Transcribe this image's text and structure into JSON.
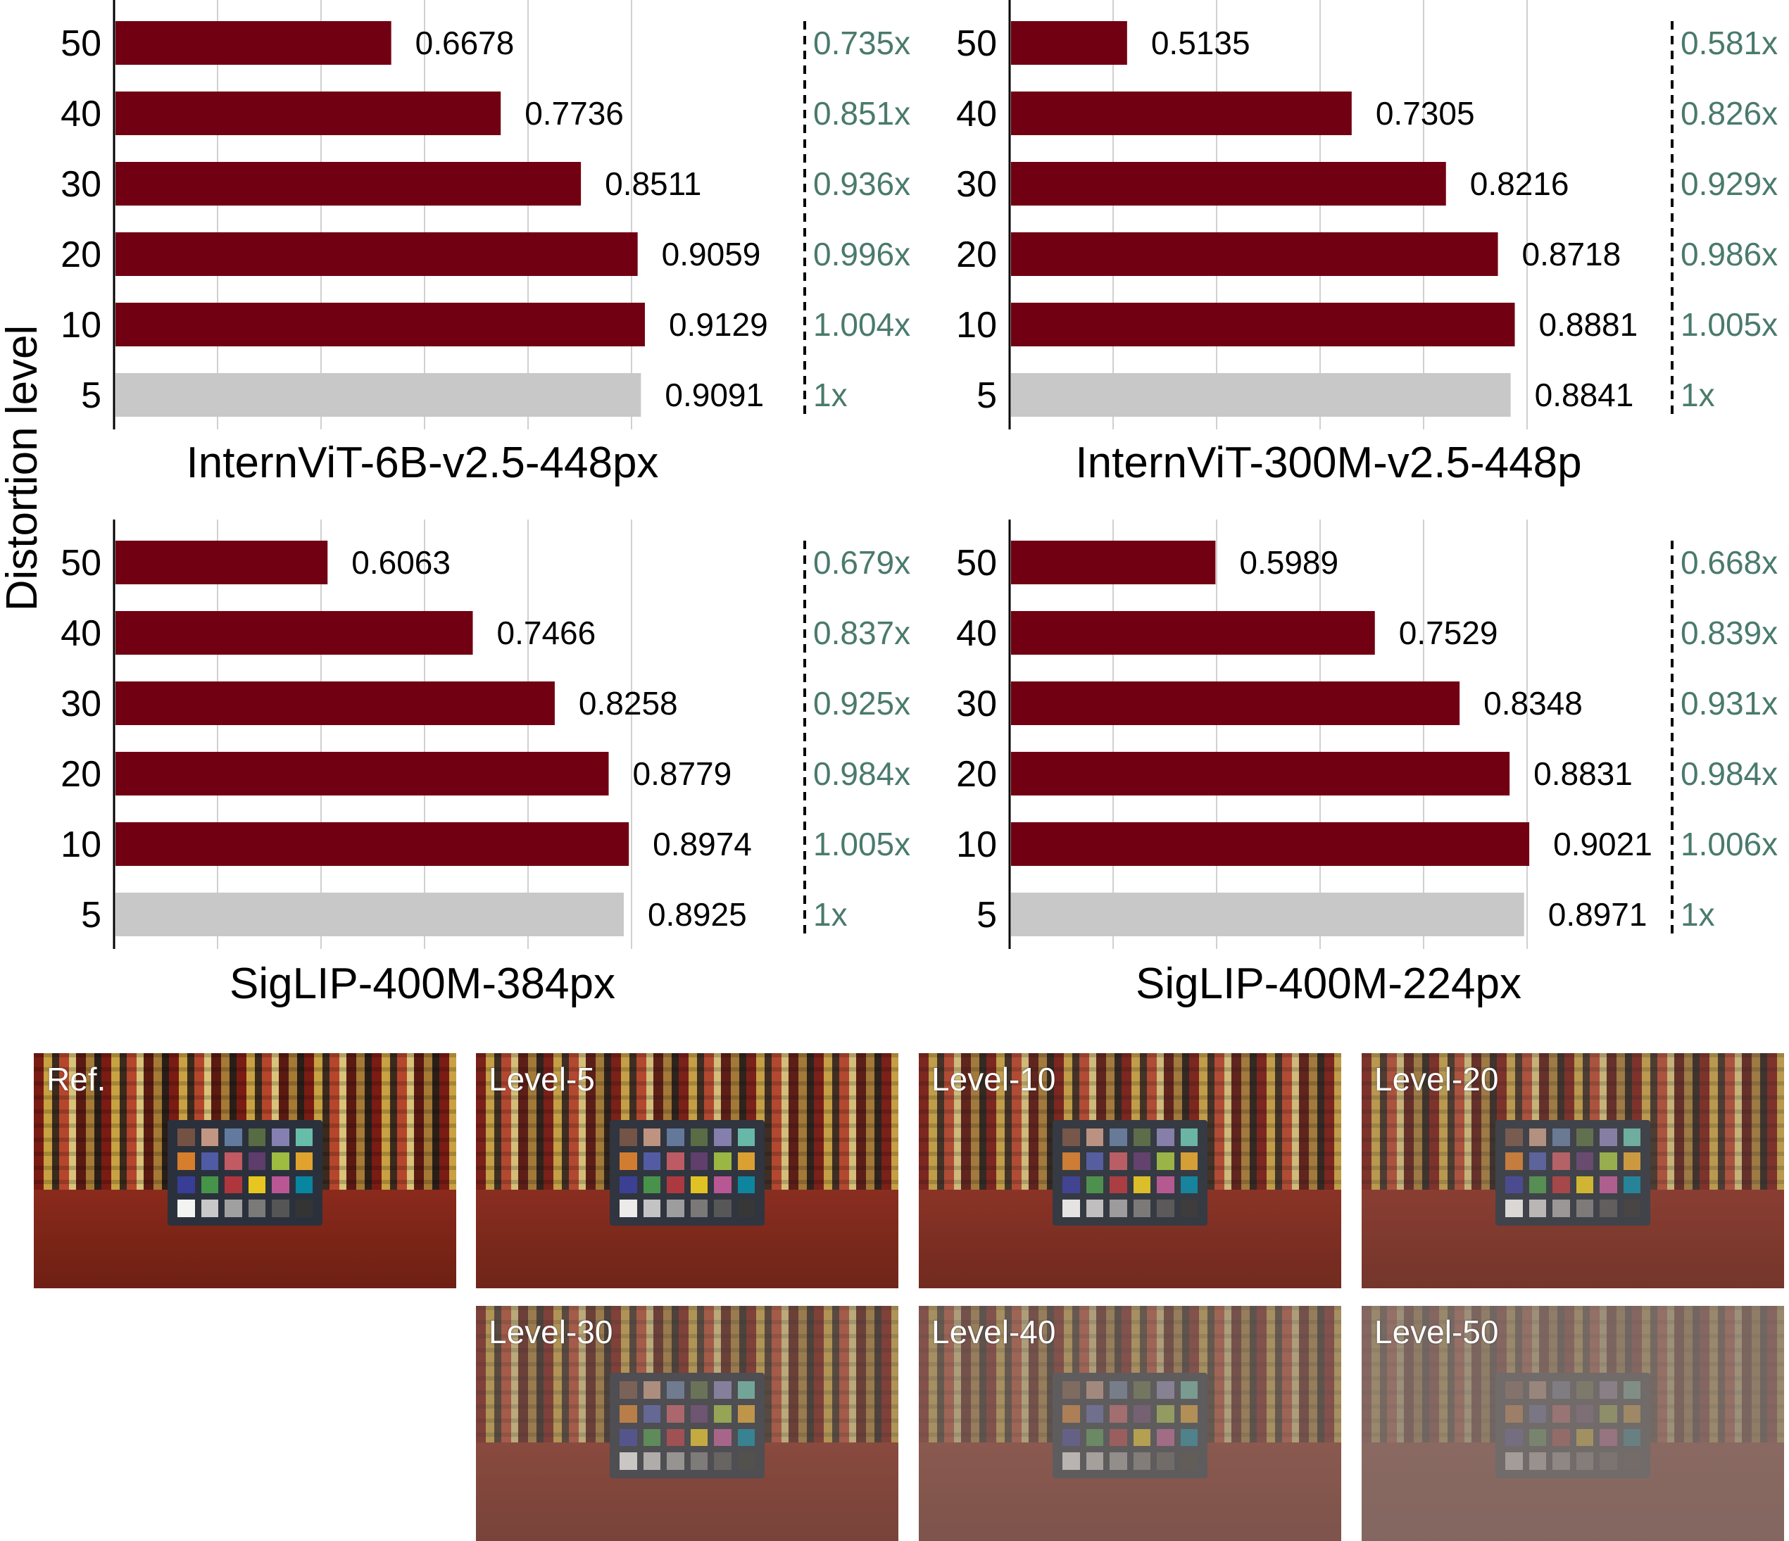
{
  "y_axis_label": "Distortion level",
  "chart_data": [
    {
      "type": "bar",
      "title": "InternViT-6B-v2.5-448px",
      "categories": [
        "50",
        "40",
        "30",
        "20",
        "10",
        "5"
      ],
      "values": [
        0.6678,
        0.7736,
        0.8511,
        0.9059,
        0.9129,
        0.9091
      ],
      "value_labels": [
        "0.6678",
        "0.7736",
        "0.8511",
        "0.9059",
        "0.9129",
        "0.9091"
      ],
      "ratios": [
        "0.735x",
        "0.851x",
        "0.936x",
        "0.996x",
        "1.004x",
        "1x"
      ],
      "bar_colors": [
        "#710012",
        "#710012",
        "#710012",
        "#710012",
        "#710012",
        "#c8c8c8"
      ],
      "xlim": [
        0.4,
        1.0
      ],
      "grid": true
    },
    {
      "type": "bar",
      "title": "InternViT-300M-v2.5-448p",
      "categories": [
        "50",
        "40",
        "30",
        "20",
        "10",
        "5"
      ],
      "values": [
        0.5135,
        0.7305,
        0.8216,
        0.8718,
        0.8881,
        0.8841
      ],
      "value_labels": [
        "0.5135",
        "0.7305",
        "0.8216",
        "0.8718",
        "0.8881",
        "0.8841"
      ],
      "ratios": [
        "0.581x",
        "0.826x",
        "0.929x",
        "0.986x",
        "1.005x",
        "1x"
      ],
      "bar_colors": [
        "#710012",
        "#710012",
        "#710012",
        "#710012",
        "#710012",
        "#c8c8c8"
      ],
      "xlim": [
        0.4,
        1.0
      ],
      "grid": true
    },
    {
      "type": "bar",
      "title": "SigLIP-400M-384px",
      "categories": [
        "50",
        "40",
        "30",
        "20",
        "10",
        "5"
      ],
      "values": [
        0.6063,
        0.7466,
        0.8258,
        0.8779,
        0.8974,
        0.8925
      ],
      "value_labels": [
        "0.6063",
        "0.7466",
        "0.8258",
        "0.8779",
        "0.8974",
        "0.8925"
      ],
      "ratios": [
        "0.679x",
        "0.837x",
        "0.925x",
        "0.984x",
        "1.005x",
        "1x"
      ],
      "bar_colors": [
        "#710012",
        "#710012",
        "#710012",
        "#710012",
        "#710012",
        "#c8c8c8"
      ],
      "xlim": [
        0.4,
        1.0
      ],
      "grid": true
    },
    {
      "type": "bar",
      "title": "SigLIP-400M-224px",
      "categories": [
        "50",
        "40",
        "30",
        "20",
        "10",
        "5"
      ],
      "values": [
        0.5989,
        0.7529,
        0.8348,
        0.8831,
        0.9021,
        0.8971
      ],
      "value_labels": [
        "0.5989",
        "0.7529",
        "0.8348",
        "0.8831",
        "0.9021",
        "0.8971"
      ],
      "ratios": [
        "0.668x",
        "0.839x",
        "0.931x",
        "0.984x",
        "1.006x",
        "1x"
      ],
      "bar_colors": [
        "#710012",
        "#710012",
        "#710012",
        "#710012",
        "#710012",
        "#c8c8c8"
      ],
      "xlim": [
        0.4,
        1.0
      ],
      "grid": true
    }
  ],
  "samples": [
    {
      "label": "Ref.",
      "fog": 0.0
    },
    {
      "label": "Level-5",
      "fog": 0.06
    },
    {
      "label": "Level-10",
      "fog": 0.12
    },
    {
      "label": "Level-20",
      "fog": 0.24
    },
    {
      "label": "Level-30",
      "fog": 0.38
    },
    {
      "label": "Level-40",
      "fog": 0.55
    },
    {
      "label": "Level-50",
      "fog": 0.75
    }
  ],
  "checker_colors": [
    "#735244",
    "#c29682",
    "#627a9d",
    "#576c43",
    "#8580b1",
    "#67bdaa",
    "#d67e2c",
    "#505ba6",
    "#c15a63",
    "#5e3c6c",
    "#9dbc40",
    "#e0a32e",
    "#383d96",
    "#469449",
    "#af363c",
    "#e7c71f",
    "#bb5695",
    "#0885a1",
    "#f3f3f2",
    "#c8c8c8",
    "#a0a0a0",
    "#7a7a79",
    "#555555",
    "#343434"
  ]
}
